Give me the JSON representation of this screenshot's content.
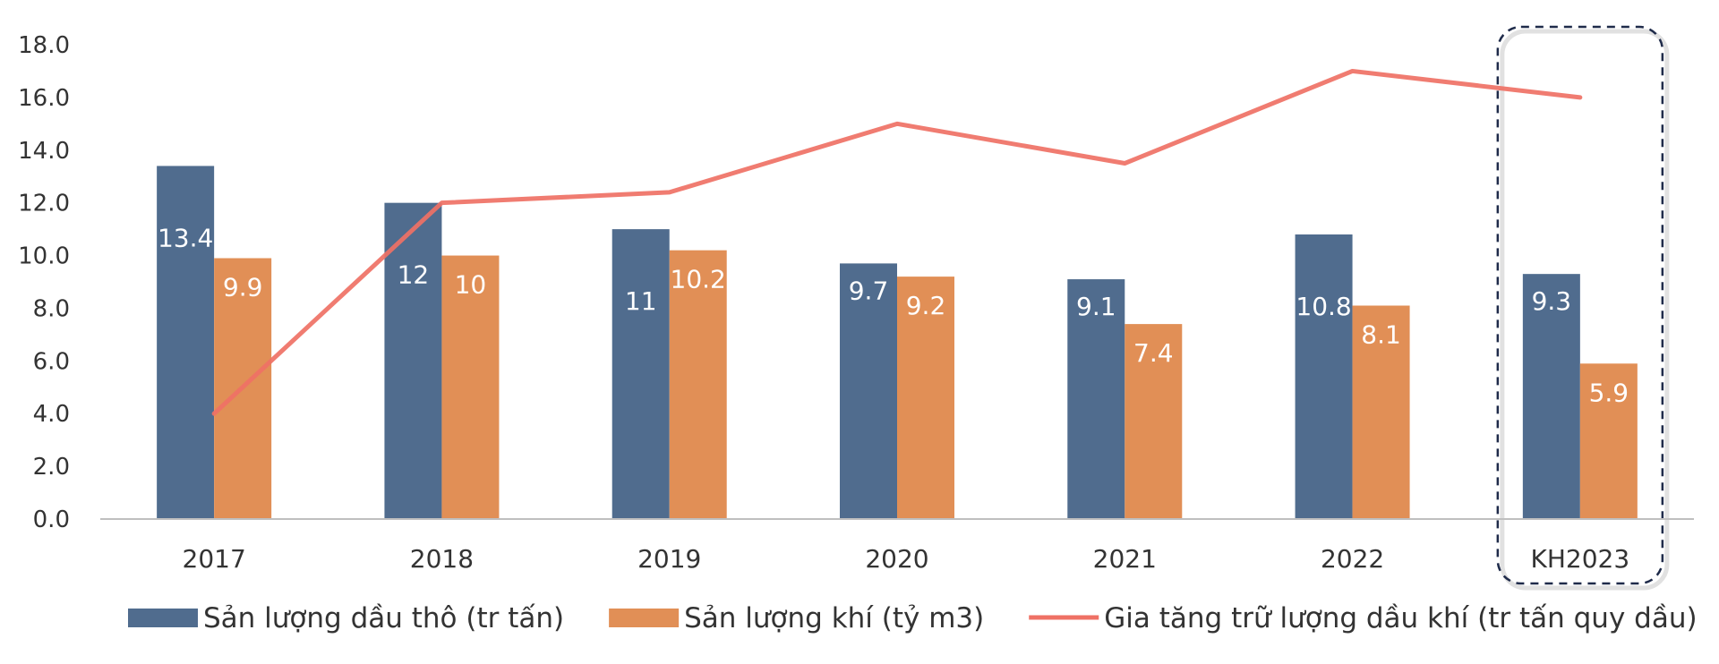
{
  "chart_data": {
    "type": "bar",
    "categories": [
      "2017",
      "2018",
      "2019",
      "2020",
      "2021",
      "2022",
      "KH2023"
    ],
    "ylim": [
      0,
      18
    ],
    "yticks": [
      "0.0",
      "2.0",
      "4.0",
      "6.0",
      "8.0",
      "10.0",
      "12.0",
      "14.0",
      "16.0",
      "18.0"
    ],
    "grid": false,
    "legend": "bottom",
    "highlight_category": "KH2023",
    "series": [
      {
        "name": "Sản lượng dầu thô (tr tấn)",
        "kind": "bar",
        "color": "#506c8e",
        "values": [
          13.4,
          12,
          11,
          9.7,
          9.1,
          10.8,
          9.3
        ],
        "labels": [
          "13.4",
          "12",
          "11",
          "9.7",
          "9.1",
          "10.8",
          "9.3"
        ]
      },
      {
        "name": "Sản lượng khí (tỷ m3)",
        "kind": "bar",
        "color": "#e18f56",
        "values": [
          9.9,
          10,
          10.2,
          9.2,
          7.4,
          8.1,
          5.9
        ],
        "labels": [
          "9.9",
          "10",
          "10.2",
          "9.2",
          "7.4",
          "8.1",
          "5.9"
        ]
      },
      {
        "name": "Gia tăng trữ lượng dầu khí (tr tấn quy dầu)",
        "kind": "line",
        "color": "#ef7165",
        "values": [
          4.0,
          12.0,
          12.4,
          15.0,
          13.5,
          17.0,
          16.0
        ]
      }
    ]
  }
}
